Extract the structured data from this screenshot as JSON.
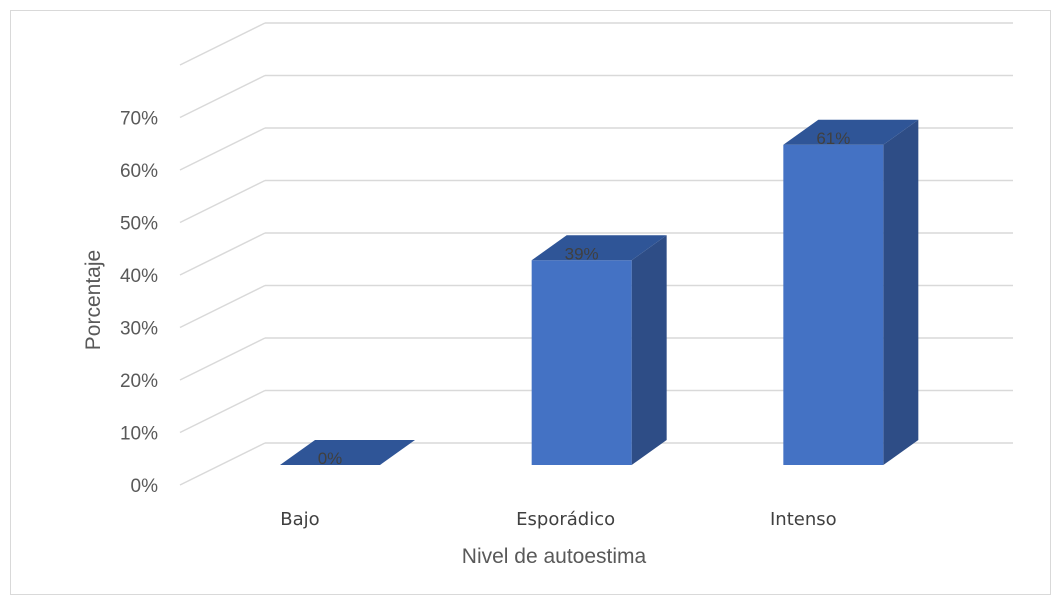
{
  "chart_data": {
    "type": "bar",
    "title": "",
    "xlabel": "Nivel de autoestima",
    "ylabel": "Porcentaje",
    "categories": [
      "Bajo",
      "Esporádico",
      "Intenso"
    ],
    "values": [
      0,
      39,
      61
    ],
    "data_labels": [
      "0%",
      "39%",
      "61%"
    ],
    "ylim": [
      0,
      80
    ],
    "yticks": [
      0,
      10,
      20,
      30,
      40,
      50,
      60,
      70
    ],
    "ytick_labels": [
      "0%",
      "10%",
      "20%",
      "30%",
      "40%",
      "50%",
      "60%",
      "70%"
    ],
    "grid": true,
    "style": "3d-column",
    "colors": {
      "front": "#4472c4",
      "side": "#2e4d86",
      "top": "#2f5597",
      "grid": "#d9d9d9"
    }
  }
}
